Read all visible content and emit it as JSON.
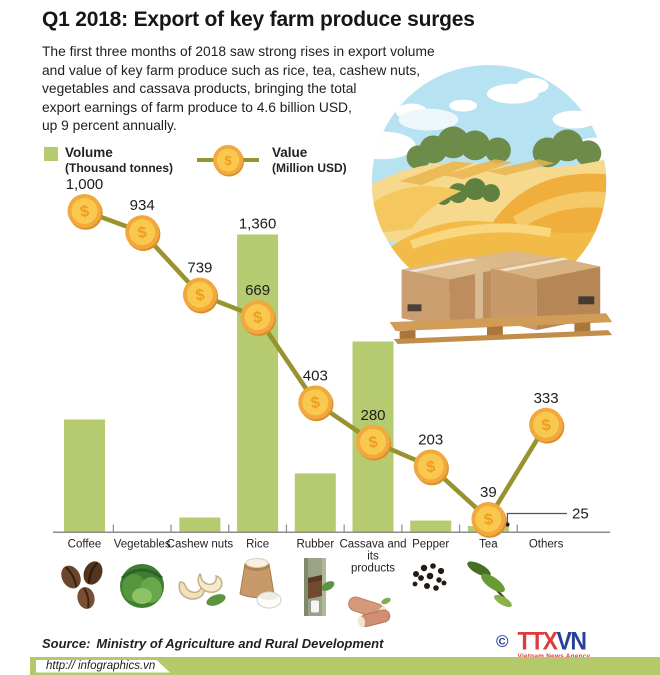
{
  "title": "Q1 2018: Export of key farm produce surges",
  "intro": "The first three months of 2018 saw strong rises in export volume\nand value of key farm produce such as rice, tea, cashew nuts,\nvegetables and cassava products, bringing the total\nexport earnings of farm produce to 4.6 billion USD,\nup 9 percent annually.",
  "legend": {
    "volume_label": "Volume",
    "volume_unit": "(Thousand tonnes)",
    "value_label": "Value",
    "value_unit": "(Million USD)"
  },
  "chart_data": {
    "type": "bar+line",
    "categories": [
      "Coffee",
      "Vegetables",
      "Cashew nuts",
      "Rice",
      "Rubber",
      "Cassava and its products",
      "Pepper",
      "Tea",
      "Others"
    ],
    "category_display": [
      [
        "Coffee"
      ],
      [
        "Vegetables"
      ],
      [
        "Cashew nuts"
      ],
      [
        "Rice"
      ],
      [
        "Rubber"
      ],
      [
        "Cassava and",
        "its",
        "products"
      ],
      [
        "Pepper"
      ],
      [
        "Tea"
      ],
      [
        "Others"
      ]
    ],
    "volume_series": {
      "name": "Volume",
      "unit": "Thousand tonnes",
      "type": "bar",
      "values": [
        513,
        null,
        64,
        1360,
        266,
        870,
        50,
        25,
        null
      ],
      "shown_labels": {
        "Rice": "1,360",
        "Tea": "25"
      }
    },
    "value_series": {
      "name": "Value",
      "unit": "Million USD",
      "type": "line",
      "values": [
        1000,
        934,
        739,
        669,
        403,
        280,
        203,
        39,
        333
      ],
      "labels": [
        "1,000",
        "934",
        "739",
        "669",
        "403",
        "280",
        "203",
        "39",
        "333"
      ]
    },
    "icons": [
      "coffee-beans-icon",
      "vegetables-icon",
      "cashew-nuts-icon",
      "rice-sack-icon",
      "rubber-tap-icon",
      "cassava-roots-icon",
      "peppercorns-icon",
      "tea-leaves-icon",
      null
    ],
    "legend_position": "top-left",
    "grid": false
  },
  "source": {
    "label": "Source:",
    "text": "Ministry of Agriculture and Rural Development"
  },
  "footer": {
    "url": "http:// infographics.vn"
  },
  "logo": {
    "copyright": "©",
    "part1": "TTX",
    "part2": "VN",
    "subtext": "Vietnam News Agency"
  },
  "colors": {
    "bar": "#b6ca6f",
    "line": "#97942f",
    "coin_face": "#f9c84f",
    "coin_ring": "#f2a83c",
    "coin_symbol": "#ee9d1f",
    "axis": "#8d8d8d",
    "text": "#231f20",
    "footer_green": "#b4c96a",
    "logo_red": "#e03a3c",
    "logo_blue": "#26419a"
  }
}
